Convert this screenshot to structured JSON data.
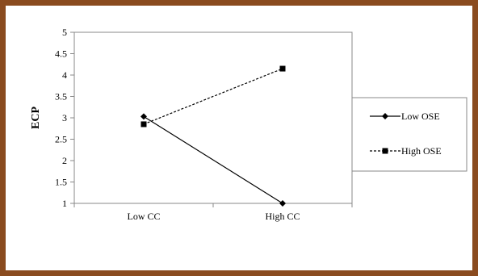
{
  "chart_data": {
    "type": "line",
    "categories": [
      "Low CC",
      "High CC"
    ],
    "ylabel": "ECP",
    "xlabel": "",
    "ylim": [
      1,
      5
    ],
    "yticks": [
      "1",
      "1.5",
      "2",
      "2.5",
      "3",
      "3.5",
      "4",
      "4.5",
      "5"
    ],
    "grid": false,
    "legend": "right",
    "series": [
      {
        "name": "Low OSE",
        "values": [
          3.03,
          1.0
        ],
        "marker": "diamond",
        "line_style": "solid",
        "color": "#000000"
      },
      {
        "name": "High OSE",
        "values": [
          2.85,
          4.15
        ],
        "marker": "square",
        "line_style": "dashed",
        "color": "#000000"
      }
    ]
  },
  "colors": {
    "frame": "#8a4b1f",
    "plot_border": "#888888"
  }
}
